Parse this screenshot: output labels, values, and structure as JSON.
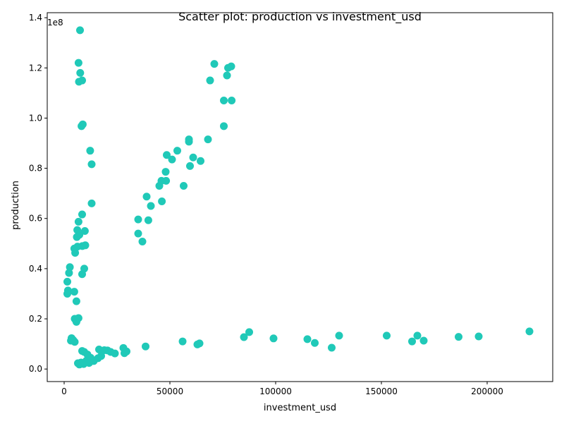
{
  "chart_data": {
    "type": "scatter",
    "title": "Scatter plot: production vs investment_usd",
    "xlabel": "investment_usd",
    "ylabel": "production",
    "y_multiplier_label": "1e8",
    "xlim": [
      -8000,
      231000
    ],
    "ylim": [
      -5000000,
      142000000
    ],
    "x_ticks": [
      0,
      50000,
      100000,
      150000,
      200000
    ],
    "x_tick_labels": [
      "0",
      "50000",
      "100000",
      "150000",
      "200000"
    ],
    "y_ticks": [
      0,
      20000000,
      40000000,
      60000000,
      80000000,
      100000000,
      120000000,
      140000000
    ],
    "y_tick_labels": [
      "0.0",
      "0.2",
      "0.4",
      "0.6",
      "0.8",
      "1.0",
      "1.2",
      "1.4"
    ],
    "grid": false,
    "marker_color": "#20c9b8",
    "series": [
      {
        "points": [
          [
            7500,
            135000000
          ],
          [
            6800,
            122000000
          ],
          [
            7600,
            118000000
          ],
          [
            7000,
            114500000
          ],
          [
            8500,
            115000000
          ],
          [
            8200,
            96800000
          ],
          [
            8800,
            97500000
          ],
          [
            12300,
            87000000
          ],
          [
            13000,
            81600000
          ],
          [
            13000,
            66000000
          ],
          [
            8500,
            61600000
          ],
          [
            6800,
            58700000
          ],
          [
            6200,
            55400000
          ],
          [
            9800,
            55000000
          ],
          [
            6000,
            52600000
          ],
          [
            7200,
            53500000
          ],
          [
            4800,
            48000000
          ],
          [
            5200,
            46300000
          ],
          [
            6300,
            48800000
          ],
          [
            8600,
            49000000
          ],
          [
            10000,
            49300000
          ],
          [
            2700,
            40600000
          ],
          [
            9500,
            40000000
          ],
          [
            2300,
            38300000
          ],
          [
            8500,
            37800000
          ],
          [
            1500,
            34800000
          ],
          [
            1800,
            31300000
          ],
          [
            1500,
            30000000
          ],
          [
            4800,
            30800000
          ],
          [
            5800,
            27000000
          ],
          [
            5000,
            20000000
          ],
          [
            5800,
            18800000
          ],
          [
            6800,
            20300000
          ],
          [
            3500,
            12300000
          ],
          [
            3200,
            11300000
          ],
          [
            4300,
            11500000
          ],
          [
            5000,
            10800000
          ],
          [
            8500,
            7200000
          ],
          [
            9500,
            6800000
          ],
          [
            11000,
            5800000
          ],
          [
            12500,
            4500000
          ],
          [
            14000,
            3200000
          ],
          [
            6500,
            2300000
          ],
          [
            7200,
            1800000
          ],
          [
            8000,
            2600000
          ],
          [
            9200,
            2000000
          ],
          [
            10500,
            3300000
          ],
          [
            11800,
            2400000
          ],
          [
            16000,
            4300000
          ],
          [
            17500,
            5200000
          ],
          [
            16500,
            7800000
          ],
          [
            19000,
            7500000
          ],
          [
            20500,
            7400000
          ],
          [
            22000,
            6800000
          ],
          [
            24000,
            6200000
          ],
          [
            28000,
            8400000
          ],
          [
            28500,
            6300000
          ],
          [
            29500,
            7000000
          ],
          [
            38500,
            9000000
          ],
          [
            56000,
            11000000
          ],
          [
            63000,
            9800000
          ],
          [
            64000,
            10200000
          ],
          [
            35000,
            59600000
          ],
          [
            35000,
            54000000
          ],
          [
            37000,
            50800000
          ],
          [
            39000,
            68700000
          ],
          [
            39800,
            59300000
          ],
          [
            41000,
            65000000
          ],
          [
            45000,
            73000000
          ],
          [
            46000,
            75000000
          ],
          [
            46200,
            66800000
          ],
          [
            48000,
            78600000
          ],
          [
            48200,
            75000000
          ],
          [
            48500,
            85300000
          ],
          [
            51000,
            83500000
          ],
          [
            53500,
            87000000
          ],
          [
            56500,
            73000000
          ],
          [
            59000,
            91500000
          ],
          [
            59000,
            90600000
          ],
          [
            59500,
            80900000
          ],
          [
            61000,
            84300000
          ],
          [
            64500,
            82900000
          ],
          [
            68000,
            91500000
          ],
          [
            69000,
            115000000
          ],
          [
            71000,
            121600000
          ],
          [
            75500,
            107000000
          ],
          [
            75500,
            96800000
          ],
          [
            77000,
            117000000
          ],
          [
            77500,
            120000000
          ],
          [
            79000,
            120600000
          ],
          [
            79200,
            107000000
          ],
          [
            85000,
            12700000
          ],
          [
            87500,
            14700000
          ],
          [
            99000,
            12200000
          ],
          [
            115000,
            11900000
          ],
          [
            118500,
            10400000
          ],
          [
            126500,
            8500000
          ],
          [
            130000,
            13300000
          ],
          [
            152500,
            13300000
          ],
          [
            164500,
            11000000
          ],
          [
            167000,
            13300000
          ],
          [
            170000,
            11300000
          ],
          [
            186500,
            12800000
          ],
          [
            196000,
            13000000
          ],
          [
            220000,
            15000000
          ]
        ]
      }
    ]
  }
}
